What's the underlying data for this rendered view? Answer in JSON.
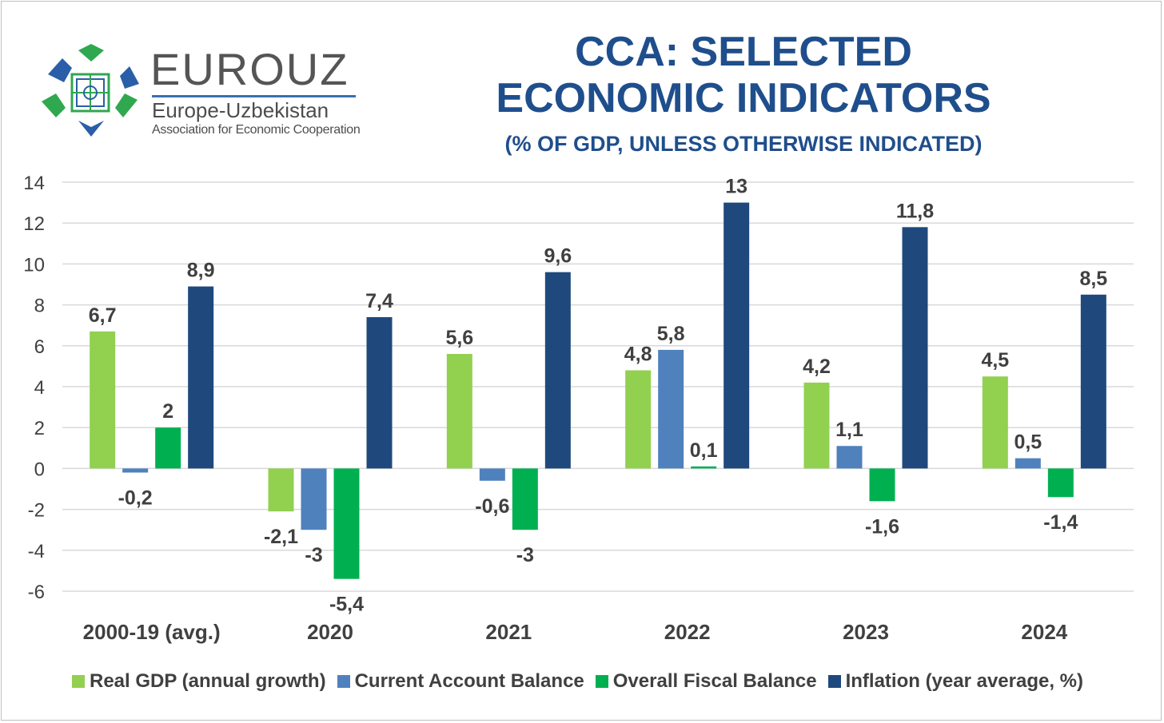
{
  "logo": {
    "name": "EUROUZ",
    "subtitle": "Europe-Uzbekistan",
    "tagline": "Association for Economic Cooperation"
  },
  "header": {
    "title_line1": "CCA: SELECTED",
    "title_line2": "ECONOMIC INDICATORS",
    "subtitle": "(% OF GDP, UNLESS OTHERWISE INDICATED)"
  },
  "colors": {
    "real_gdp": "#92d050",
    "current_account": "#4f81bd",
    "fiscal": "#00b050",
    "inflation": "#1f497d",
    "title": "#1f4e8c",
    "grid": "#d9d9d9",
    "text": "#404040"
  },
  "chart_data": {
    "type": "bar",
    "categories": [
      "2000-19 (avg.)",
      "2020",
      "2021",
      "2022",
      "2023",
      "2024"
    ],
    "series": [
      {
        "name": "Real GDP (annual growth)",
        "values": [
          6.7,
          -2.1,
          5.6,
          4.8,
          4.2,
          4.5
        ],
        "labels": [
          "6,7",
          "-2,1",
          "5,6",
          "4,8",
          "4,2",
          "4,5"
        ]
      },
      {
        "name": "Current Account Balance",
        "values": [
          -0.2,
          -3,
          -0.6,
          5.8,
          1.1,
          0.5
        ],
        "labels": [
          "-0,2",
          "-3",
          "-0,6",
          "5,8",
          "1,1",
          "0,5"
        ]
      },
      {
        "name": "Overall Fiscal Balance",
        "values": [
          2,
          -5.4,
          -3,
          0.1,
          -1.6,
          -1.4
        ],
        "labels": [
          "2",
          "-5,4",
          "-3",
          "0,1",
          "-1,6",
          "-1,4"
        ]
      },
      {
        "name": "Inflation (year average, %)",
        "values": [
          8.9,
          7.4,
          9.6,
          13,
          11.8,
          8.5
        ],
        "labels": [
          "8,9",
          "7,4",
          "9,6",
          "13",
          "11,8",
          "8,5"
        ]
      }
    ],
    "yticks": [
      "14",
      "12",
      "10",
      "8",
      "6",
      "4",
      "2",
      "0",
      "-2",
      "-4",
      "-6"
    ],
    "ylim": [
      -6,
      14
    ],
    "grid": true,
    "legend": "bottom"
  }
}
